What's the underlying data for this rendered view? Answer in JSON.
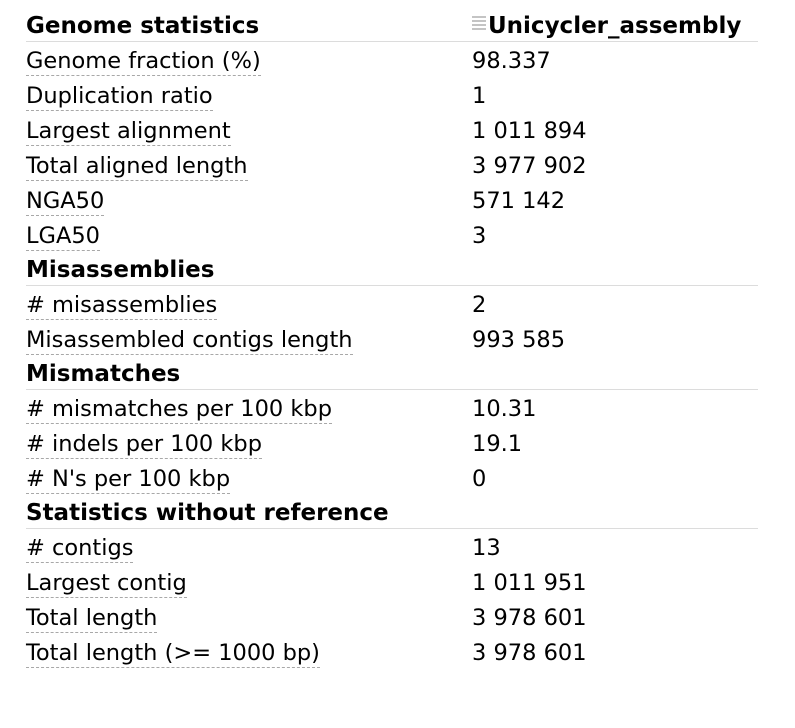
{
  "assembly_name": "Unicycler_assembly",
  "icons": {
    "column_drag_handle": "drag-handle-icon"
  },
  "sections": [
    {
      "title": "Genome statistics",
      "rows": [
        {
          "metric": "Genome fraction (%)",
          "value": "98.337"
        },
        {
          "metric": "Duplication ratio",
          "value": "1"
        },
        {
          "metric": "Largest alignment",
          "value": "1 011 894"
        },
        {
          "metric": "Total aligned length",
          "value": "3 977 902"
        },
        {
          "metric": "NGA50",
          "value": "571 142"
        },
        {
          "metric": "LGA50",
          "value": "3"
        }
      ]
    },
    {
      "title": "Misassemblies",
      "rows": [
        {
          "metric": "# misassemblies",
          "value": "2"
        },
        {
          "metric": "Misassembled contigs length",
          "value": "993 585"
        }
      ]
    },
    {
      "title": "Mismatches",
      "rows": [
        {
          "metric": "# mismatches per 100 kbp",
          "value": "10.31"
        },
        {
          "metric": "# indels per 100 kbp",
          "value": "19.1"
        },
        {
          "metric": "# N's per 100 kbp",
          "value": "0"
        }
      ]
    },
    {
      "title": "Statistics without reference",
      "rows": [
        {
          "metric": "# contigs",
          "value": "13"
        },
        {
          "metric": "Largest contig",
          "value": "1 011 951"
        },
        {
          "metric": "Total length",
          "value": "3 978 601"
        },
        {
          "metric": "Total length (>= 1000 bp)",
          "value": "3 978 601"
        }
      ]
    }
  ]
}
